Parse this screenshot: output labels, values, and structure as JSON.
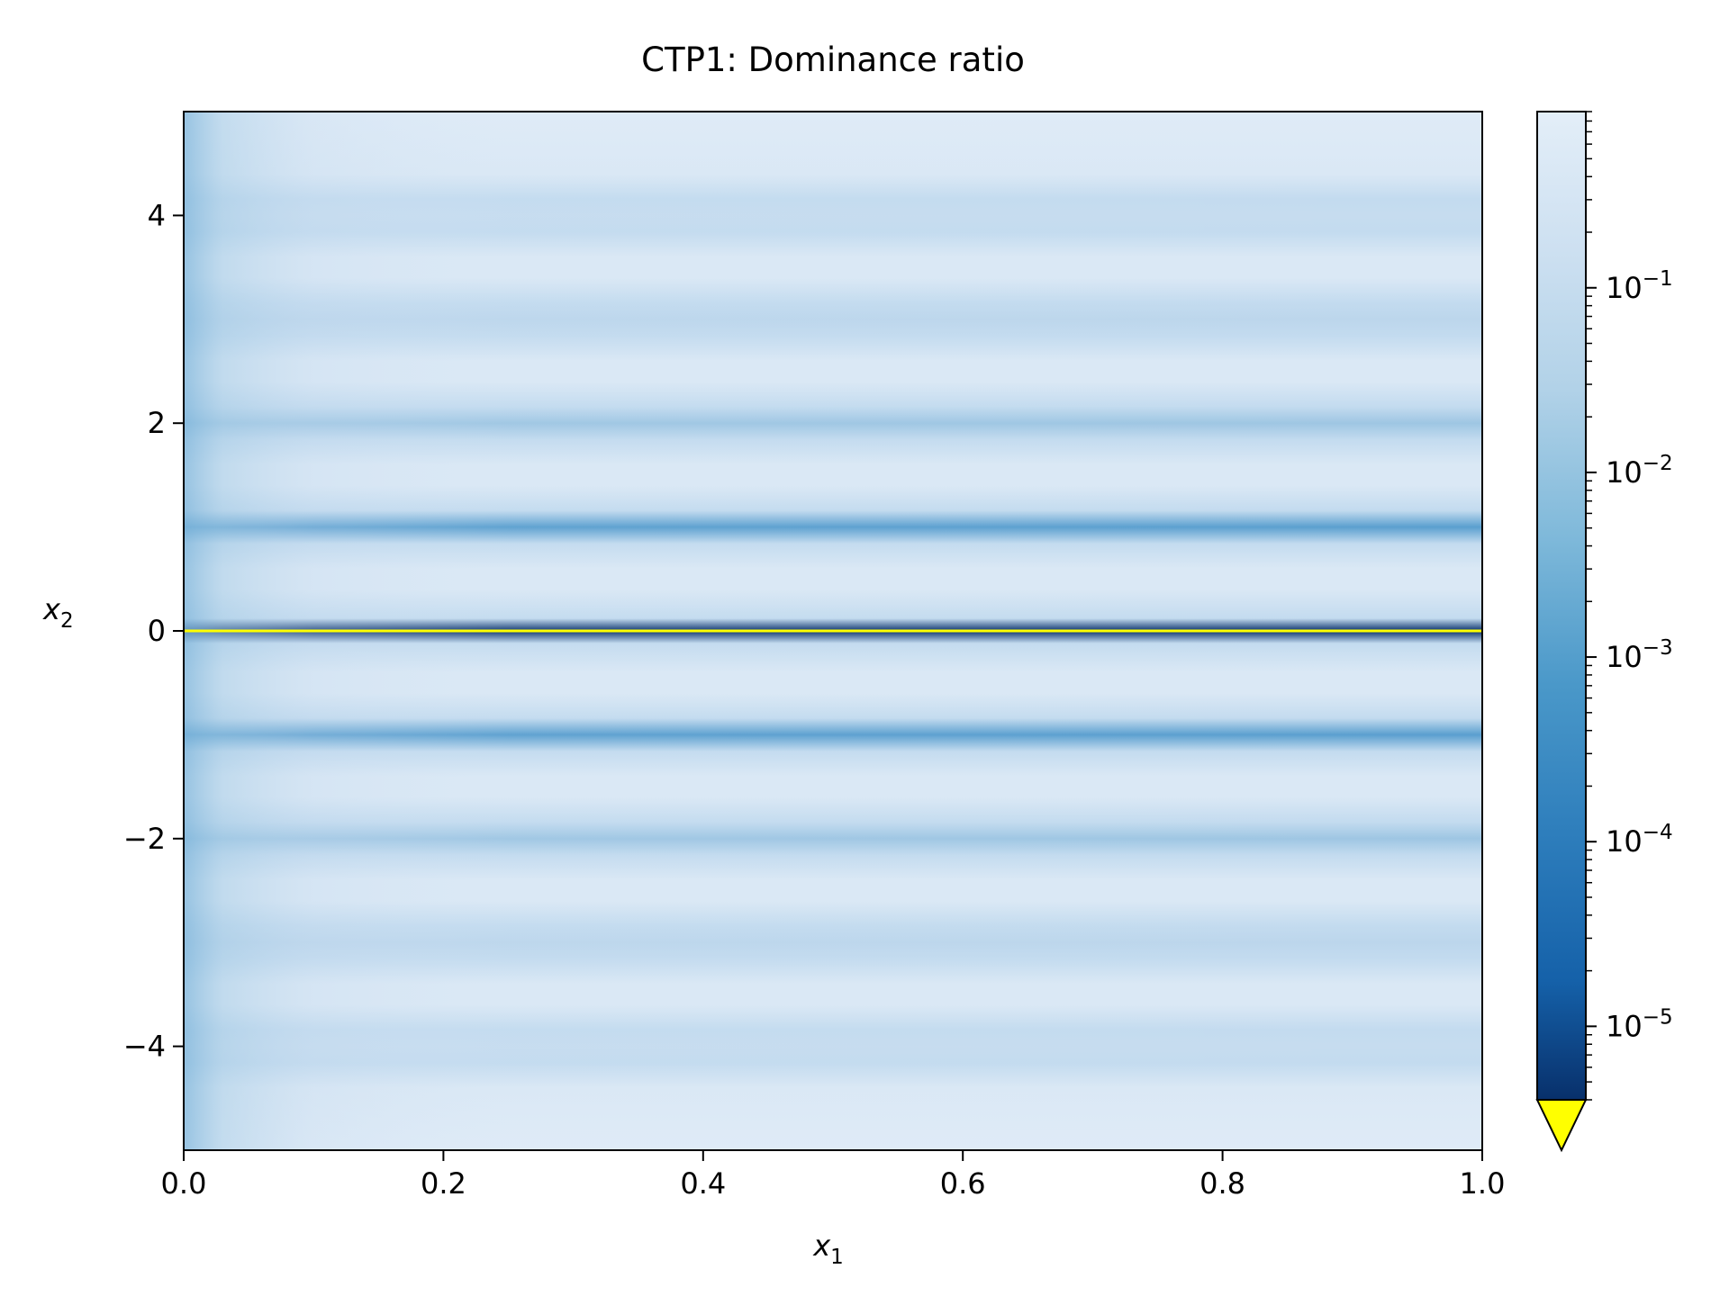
{
  "chart_data": {
    "type": "heatmap",
    "title": "CTP1: Dominance ratio",
    "xlabel": "x",
    "xlabel_sub": "1",
    "ylabel": "x",
    "ylabel_sub": "2",
    "xlim": [
      0.0,
      1.0
    ],
    "ylim": [
      -5,
      5
    ],
    "x_ticks": [
      0.0,
      0.2,
      0.4,
      0.6,
      0.8,
      1.0
    ],
    "x_tick_labels": [
      "0.0",
      "0.2",
      "0.4",
      "0.6",
      "0.8",
      "1.0"
    ],
    "y_ticks": [
      -4,
      -2,
      0,
      2,
      4
    ],
    "y_tick_labels": [
      "−4",
      "−2",
      "0",
      "2",
      "4"
    ],
    "colorbar": {
      "scale": "log",
      "colormap": "Blues_r",
      "range": [
        4e-06,
        0.9
      ],
      "ticks": [
        1e-05,
        0.0001,
        0.001,
        0.01,
        0.1
      ],
      "tick_base": "10",
      "tick_exponents": [
        "−5",
        "−4",
        "−3",
        "−2",
        "−1"
      ],
      "extend": "min",
      "under_color": "#ffff00"
    },
    "features": {
      "dark_bands_at_x2": [
        -4,
        -3,
        -2,
        -1,
        0,
        1,
        2,
        3,
        4
      ],
      "under_range_line_at_x2": 0,
      "colors": {
        "low": "#08306b",
        "mid": "#4a98c9",
        "high": "#dfebf7",
        "under": "#ffff00"
      }
    }
  }
}
